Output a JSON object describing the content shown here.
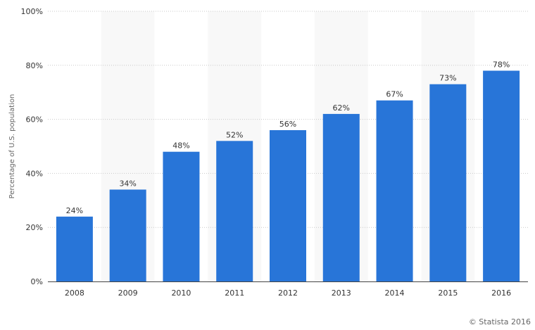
{
  "chart_data": {
    "type": "bar",
    "title": "",
    "xlabel": "",
    "ylabel": "Percentage of U.S. population",
    "categories": [
      "2008",
      "2009",
      "2010",
      "2011",
      "2012",
      "2013",
      "2014",
      "2015",
      "2016"
    ],
    "values": [
      24,
      34,
      48,
      52,
      56,
      62,
      67,
      73,
      78
    ],
    "value_labels": [
      "24%",
      "34%",
      "48%",
      "52%",
      "56%",
      "62%",
      "67%",
      "73%",
      "78%"
    ],
    "ylim": [
      0,
      100
    ],
    "yticks": [
      0,
      20,
      40,
      60,
      80,
      100
    ],
    "ytick_labels": [
      "0%",
      "20%",
      "40%",
      "60%",
      "80%",
      "100%"
    ],
    "grid": true,
    "alternating_column_shading": true,
    "legend": "none"
  },
  "colors": {
    "bar": "#2875d8",
    "shade": "#f8f8f8",
    "grid": "#c9c9c9",
    "axis": "#444444",
    "text": "#333333",
    "muted": "#666666"
  },
  "credit": "© Statista 2016"
}
